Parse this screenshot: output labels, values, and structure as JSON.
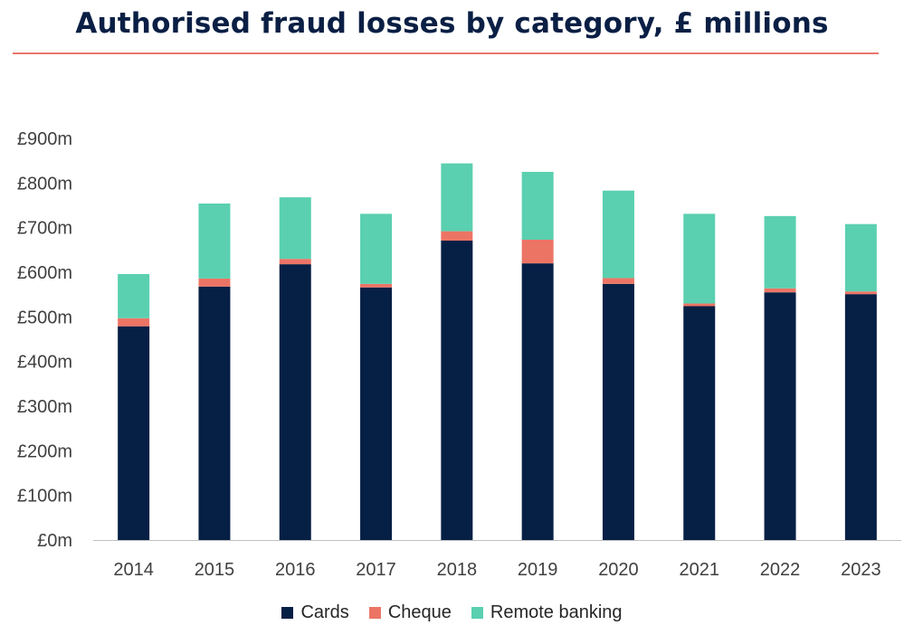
{
  "title": "Authorised fraud losses by category, £ millions",
  "colors": {
    "Cards": "#061f45",
    "Cheque": "#ec7465",
    "Remote banking": "#5ad0b0",
    "axis": "#bfbfbf",
    "title": "#0a1f44",
    "rule": "#e8776b"
  },
  "chart_data": {
    "type": "bar",
    "stacked": true,
    "title": "Authorised fraud losses by category, £ millions",
    "xlabel": "",
    "ylabel": "",
    "categories": [
      "2014",
      "2015",
      "2016",
      "2017",
      "2018",
      "2019",
      "2020",
      "2021",
      "2022",
      "2023"
    ],
    "series": [
      {
        "name": "Cards",
        "values": [
          479,
          568,
          618,
          566,
          671,
          620,
          574,
          524,
          555,
          551
        ]
      },
      {
        "name": "Cheque",
        "values": [
          18,
          18,
          12,
          8,
          21,
          53,
          13,
          6,
          9,
          6
        ]
      },
      {
        "name": "Remote banking",
        "values": [
          99,
          168,
          138,
          157,
          152,
          152,
          196,
          201,
          162,
          151
        ]
      }
    ],
    "ylim": [
      0,
      900
    ],
    "yticks": [
      "£0m",
      "£100m",
      "£200m",
      "£300m",
      "£400m",
      "£500m",
      "£600m",
      "£700m",
      "£800m",
      "£900m"
    ],
    "grid": false,
    "legend": "bottom"
  }
}
